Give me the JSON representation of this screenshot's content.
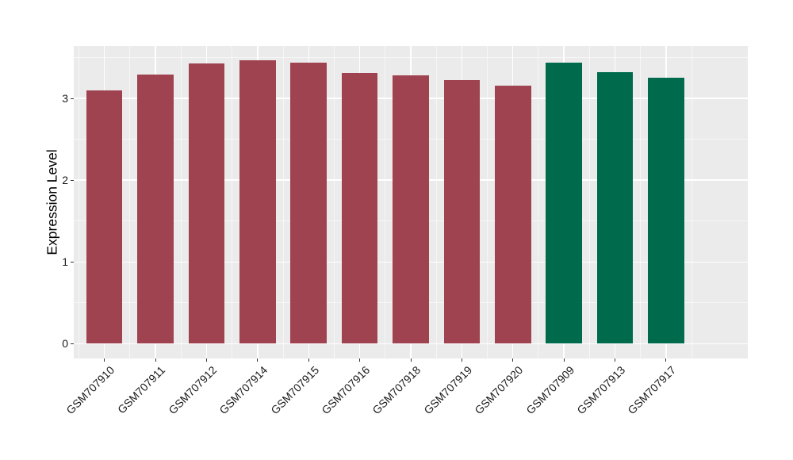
{
  "chart_data": {
    "type": "bar",
    "title": "",
    "ylabel": "Expression Level",
    "categories": [
      "GSM707910",
      "GSM707911",
      "GSM707912",
      "GSM707914",
      "GSM707915",
      "GSM707916",
      "GSM707918",
      "GSM707919",
      "GSM707920",
      "GSM707909",
      "GSM707913",
      "GSM707917"
    ],
    "values": [
      3.1,
      3.29,
      3.43,
      3.47,
      3.44,
      3.31,
      3.28,
      3.22,
      3.16,
      3.44,
      3.32,
      3.25
    ],
    "groups": [
      "red",
      "red",
      "red",
      "red",
      "red",
      "red",
      "red",
      "red",
      "red",
      "green",
      "green",
      "green"
    ],
    "group_colors": {
      "red": "#A04351",
      "green": "#006B4C"
    },
    "yticks": [
      0,
      1,
      2,
      3
    ],
    "yticks_minor": [
      0.5,
      1.5,
      2.5,
      3.5
    ],
    "ylim": [
      -0.18,
      3.64
    ],
    "panel_bg": "#EBEBEB",
    "grid_color": "#FFFFFF",
    "tick_color": "#333333",
    "legend": "none",
    "grid": true
  }
}
